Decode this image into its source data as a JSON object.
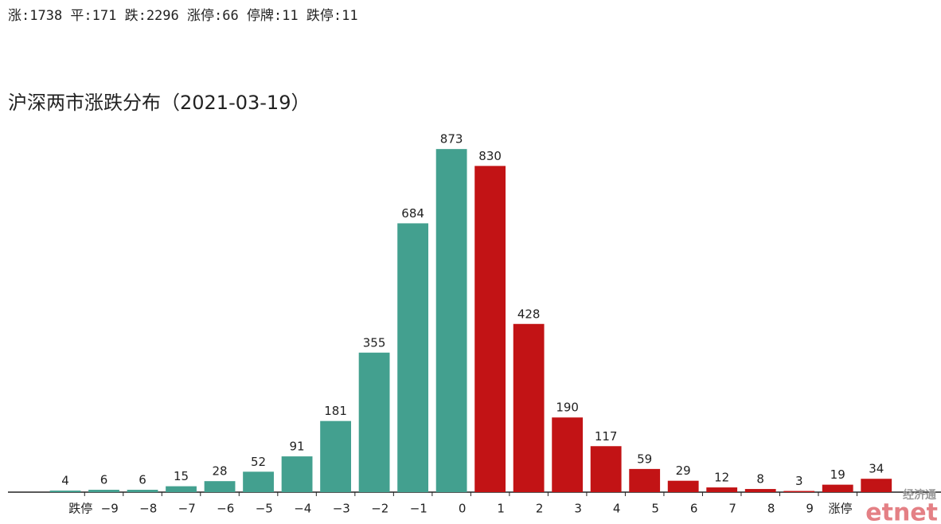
{
  "header": "涨:1738 平:171 跌:2296 涨停:66 停牌:11 跌停:11",
  "chart_data": {
    "type": "bar",
    "title": "沪深两市涨跌分布（2021-03-19）",
    "values": [
      4,
      6,
      6,
      15,
      28,
      52,
      91,
      181,
      355,
      684,
      873,
      830,
      428,
      190,
      117,
      59,
      29,
      12,
      8,
      3,
      19,
      34
    ],
    "colors": [
      "#43a08f",
      "#43a08f",
      "#43a08f",
      "#43a08f",
      "#43a08f",
      "#43a08f",
      "#43a08f",
      "#43a08f",
      "#43a08f",
      "#43a08f",
      "#43a08f",
      "#c21315",
      "#c21315",
      "#c21315",
      "#c21315",
      "#c21315",
      "#c21315",
      "#c21315",
      "#c21315",
      "#c21315",
      "#c21315",
      "#c21315"
    ],
    "xtick_labels": [
      "跌停",
      "−9",
      "−8",
      "−7",
      "−6",
      "−5",
      "−4",
      "−3",
      "−2",
      "−1",
      "0",
      "1",
      "2",
      "3",
      "4",
      "5",
      "6",
      "7",
      "8",
      "9",
      "涨停"
    ],
    "ylim": [
      0,
      928
    ]
  },
  "watermark": {
    "cn": "经济通",
    "en": "etnet"
  }
}
